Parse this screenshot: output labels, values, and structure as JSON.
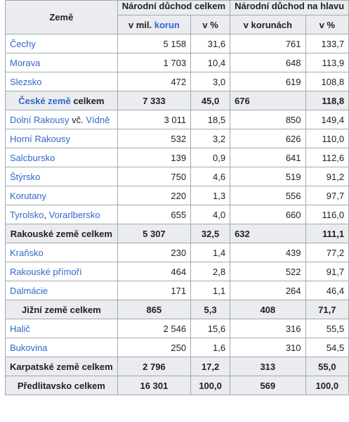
{
  "header": {
    "zeme": "Země",
    "group1": "Národní důchod celkem",
    "group2": "Národní důchod na hlavu",
    "sub1_prefix": "v mil.",
    "sub1_link": "korun",
    "sub2": "v %",
    "sub3": "v korunách",
    "sub4": "v %"
  },
  "rows": {
    "cechy": {
      "name": "Čechy",
      "v1": "5 158",
      "v2": "31,6",
      "v3": "761",
      "v4": "133,7"
    },
    "morava": {
      "name": "Morava",
      "v1": "1 703",
      "v2": "10,4",
      "v3": "648",
      "v4": "113,9"
    },
    "slezsko": {
      "name": "Slezsko",
      "v1": "472",
      "v2": "3,0",
      "v3": "619",
      "v4": "108,8"
    },
    "ceske_celkem": {
      "link": "České země",
      "suffix": " celkem",
      "v1": "7 333",
      "v2": "45,0",
      "v3": "676",
      "v4": "118,8"
    },
    "dolni": {
      "name": "Dolní Rakousy",
      "mid": " vč. ",
      "name2": "Vídně",
      "v1": "3 011",
      "v2": "18,5",
      "v3": "850",
      "v4": "149,4"
    },
    "horni": {
      "name": "Horní Rakousy",
      "v1": "532",
      "v2": "3,2",
      "v3": "626",
      "v4": "110,0"
    },
    "salcbursko": {
      "name": "Salcbursko",
      "v1": "139",
      "v2": "0,9",
      "v3": "641",
      "v4": "112,6"
    },
    "styrsko": {
      "name": "Štýrsko",
      "v1": "750",
      "v2": "4,6",
      "v3": "519",
      "v4": "91,2"
    },
    "korutany": {
      "name": "Korutany",
      "v1": "220",
      "v2": "1,3",
      "v3": "556",
      "v4": "97,7"
    },
    "tyrolsko": {
      "name": "Tyrolsko",
      "mid": ", ",
      "name2": "Vorarlbersko",
      "v1": "655",
      "v2": "4,0",
      "v3": "660",
      "v4": "116,0"
    },
    "rakouske_celkem": {
      "label": "Rakouské země celkem",
      "v1": "5 307",
      "v2": "32,5",
      "v3": "632",
      "v4": "111,1"
    },
    "kransko": {
      "name": "Kraňsko",
      "v1": "230",
      "v2": "1,4",
      "v3": "439",
      "v4": "77,2"
    },
    "primori": {
      "name": "Rakouské přímoří",
      "v1": "464",
      "v2": "2,8",
      "v3": "522",
      "v4": "91,7"
    },
    "dalmacie": {
      "name": "Dalmácie",
      "v1": "171",
      "v2": "1,1",
      "v3": "264",
      "v4": "46,4"
    },
    "jizni_celkem": {
      "label": "Jižní země celkem",
      "v1": "865",
      "v2": "5,3",
      "v3": "408",
      "v4": "71,7"
    },
    "halic": {
      "name": "Halič",
      "v1": "2 546",
      "v2": "15,6",
      "v3": "316",
      "v4": "55,5"
    },
    "bukovina": {
      "name": "Bukovina",
      "v1": "250",
      "v2": "1,6",
      "v3": "310",
      "v4": "54,5"
    },
    "karpatske_celkem": {
      "label": "Karpatské země celkem",
      "v1": "2 796",
      "v2": "17,2",
      "v3": "313",
      "v4": "55,0"
    },
    "predlitavsko_celkem": {
      "label": "Předlitavsko celkem",
      "v1": "16 301",
      "v2": "100,0",
      "v3": "569",
      "v4": "100,0"
    }
  },
  "colors": {
    "link": "#3366cc",
    "header_bg": "#eaecf0",
    "border": "#a2a9b1",
    "text": "#202122"
  }
}
